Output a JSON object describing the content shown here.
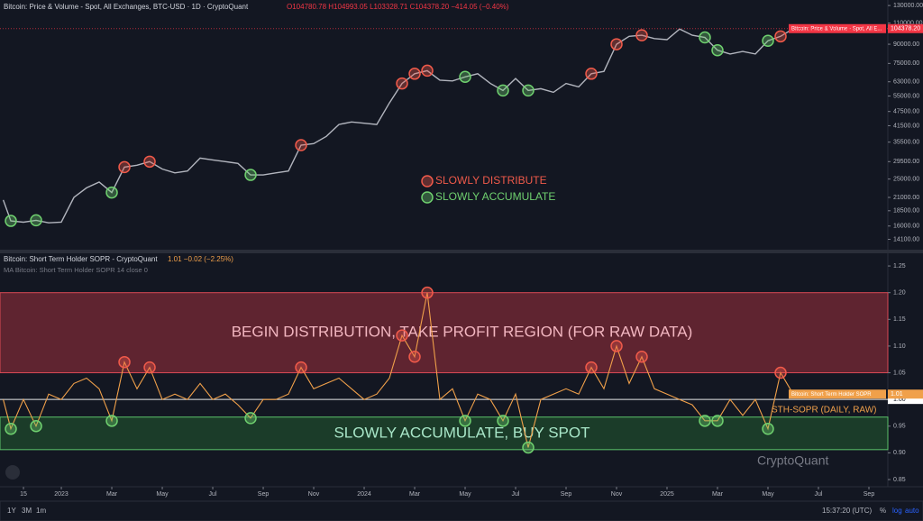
{
  "chart_data": [
    {
      "type": "line",
      "title": "Bitcoin: Price & Volume - Spot, All Exchanges, BTC-USD · 1D · CryptoQuant",
      "subtitle": "O104780.78 H104993.05 L103328.71 C104378.20 −414.05 (−0.40%)",
      "log_scale": true,
      "xlim": [
        -2.43,
        32.75
      ],
      "ylim": [
        13000,
        137000
      ],
      "yticks": [
        {
          "value": 130000,
          "label": "130000.00"
        },
        {
          "value": 110000,
          "label": "110000.00"
        },
        {
          "value": 90000,
          "label": "90000.00"
        },
        {
          "value": 75000,
          "label": "75000.00"
        },
        {
          "value": 63000,
          "label": "63000.00"
        },
        {
          "value": 55000,
          "label": "55000.00"
        },
        {
          "value": 47500,
          "label": "47500.00"
        },
        {
          "value": 41500,
          "label": "41500.00"
        },
        {
          "value": 35500,
          "label": "35500.00"
        },
        {
          "value": 29500,
          "label": "29500.00"
        },
        {
          "value": 25000,
          "label": "25000.00"
        },
        {
          "value": 21000,
          "label": "21000.00"
        },
        {
          "value": 18500,
          "label": "18500.00"
        },
        {
          "value": 16000,
          "label": "16000.00"
        },
        {
          "value": 14100,
          "label": "14100.00"
        }
      ],
      "x": [
        -2.3,
        -2,
        -1.5,
        -1,
        -0.5,
        0,
        0.5,
        1,
        1.5,
        2,
        2.5,
        3,
        3.5,
        4,
        4.5,
        5,
        5.5,
        6,
        6.5,
        7,
        7.5,
        8,
        8.5,
        9,
        9.5,
        10,
        10.5,
        11,
        11.5,
        12,
        12.5,
        13,
        13.5,
        14,
        14.5,
        15,
        15.5,
        16,
        16.5,
        17,
        17.5,
        18,
        18.5,
        19,
        19.5,
        20,
        20.5,
        21,
        21.5,
        22,
        22.5,
        23,
        23.5,
        24,
        24.5,
        25,
        25.5,
        26,
        26.5,
        27,
        27.5,
        28,
        28.5,
        29
      ],
      "series": [
        {
          "name": "Bitcoin: Price & Volume - Spot, All E...",
          "color": "#b2b5be",
          "values": [
            20500,
            16800,
            16600,
            16900,
            16500,
            16600,
            21000,
            23000,
            24300,
            22000,
            28000,
            28500,
            29500,
            27500,
            26500,
            27000,
            30500,
            30000,
            29500,
            29000,
            26000,
            26000,
            26500,
            27000,
            34500,
            35000,
            37500,
            42000,
            43000,
            42500,
            42000,
            51500,
            62000,
            68000,
            70000,
            64000,
            63500,
            66000,
            68000,
            62000,
            58000,
            65000,
            58000,
            59000,
            57000,
            62000,
            60000,
            68000,
            69500,
            90000,
            97000,
            98000,
            95000,
            94000,
            104000,
            98000,
            96000,
            85000,
            82000,
            84000,
            82000,
            93000,
            97000,
            104378.2
          ],
          "last_label": "104378.20",
          "tag_color": "#f23645"
        }
      ],
      "legend": [
        {
          "label": "SLOWLY DISTRIBUTE",
          "color": "#f05a4a"
        },
        {
          "label": "SLOWLY ACCUMULATE",
          "color": "#6fd06f"
        }
      ]
    },
    {
      "type": "line",
      "title": "Bitcoin: Short Term Holder SOPR - CryptoQuant",
      "subtitle": "1.01 −0.02 (−2.25%)",
      "indicator": "MA Bitcoin: Short Term Holder SOPR 14 close 0",
      "xlim": [
        -2.43,
        32.75
      ],
      "xticks": [
        {
          "value": -1.5,
          "label": "15"
        },
        {
          "value": 0,
          "label": "2023"
        },
        {
          "value": 2,
          "label": "Mar"
        },
        {
          "value": 4,
          "label": "May"
        },
        {
          "value": 6,
          "label": "Jul"
        },
        {
          "value": 8,
          "label": "Sep"
        },
        {
          "value": 10,
          "label": "Nov"
        },
        {
          "value": 12,
          "label": "2024"
        },
        {
          "value": 14,
          "label": "Mar"
        },
        {
          "value": 16,
          "label": "May"
        },
        {
          "value": 18,
          "label": "Jul"
        },
        {
          "value": 20,
          "label": "Sep"
        },
        {
          "value": 22,
          "label": "Nov"
        },
        {
          "value": 24,
          "label": "2025"
        },
        {
          "value": 26,
          "label": "Mar"
        },
        {
          "value": 28,
          "label": "May"
        },
        {
          "value": 30,
          "label": "Jul"
        },
        {
          "value": 32,
          "label": "Sep"
        }
      ],
      "ylim": [
        0.8365,
        1.267
      ],
      "yticks": [
        1.25,
        {
          "value": 1.2,
          "label": "1.20"
        },
        1.15,
        {
          "value": 1.1,
          "label": "1.10"
        },
        1.05,
        {
          "value": 1,
          "label": "1.00"
        },
        0.95,
        {
          "value": 0.9,
          "label": "0.90"
        },
        0.85
      ],
      "x": [
        -2.3,
        -2,
        -1.5,
        -1,
        -0.5,
        0,
        0.5,
        1,
        1.5,
        2,
        2.5,
        3,
        3.5,
        4,
        4.5,
        5,
        5.5,
        6,
        6.5,
        7,
        7.5,
        8,
        8.5,
        9,
        9.5,
        10,
        10.5,
        11,
        11.5,
        12,
        12.5,
        13,
        13.5,
        14,
        14.5,
        15,
        15.5,
        16,
        16.5,
        17,
        17.5,
        18,
        18.5,
        19,
        19.5,
        20,
        20.5,
        21,
        21.5,
        22,
        22.5,
        23,
        23.5,
        24,
        24.5,
        25,
        25.5,
        26,
        26.5,
        27,
        27.5,
        28,
        28.5,
        29
      ],
      "series": [
        {
          "name": "Bitcoin: Short Term Holder SOPR",
          "color": "#f0a04a",
          "values": [
            1.0,
            0.945,
            1.0,
            0.95,
            1.01,
            1.0,
            1.03,
            1.04,
            1.02,
            0.96,
            1.07,
            1.02,
            1.06,
            1.0,
            1.01,
            1.0,
            1.03,
            1.0,
            1.01,
            0.99,
            0.965,
            1.0,
            1.0,
            1.01,
            1.06,
            1.02,
            1.03,
            1.04,
            1.02,
            1.0,
            1.01,
            1.04,
            1.12,
            1.08,
            1.2,
            1.0,
            1.02,
            0.96,
            1.01,
            1.0,
            0.96,
            1.01,
            0.91,
            1.0,
            1.01,
            1.02,
            1.01,
            1.06,
            1.02,
            1.1,
            1.03,
            1.08,
            1.02,
            1.01,
            1.0,
            0.99,
            0.96,
            0.96,
            1.0,
            0.97,
            1.0,
            0.945,
            1.05,
            1.01
          ],
          "last_label": "1.01",
          "tag_color": "#f0a04a"
        }
      ],
      "bands": [
        {
          "from": 1.05,
          "to": 1.2,
          "color": "#7a2a35",
          "edge": "#d94a55",
          "label": "BEGIN DISTRIBUTION, TAKE PROFIT REGION (FOR RAW DATA)",
          "text_color": "#f2b6c0"
        },
        {
          "from": 0.906,
          "to": 0.967,
          "color": "#1f4a2c",
          "edge": "#5cc26a",
          "label": "SLOWLY ACCUMULATE, BUY SPOT",
          "text_color": "#a8e6c8"
        }
      ],
      "reference_line": {
        "value": 1,
        "label": "1.00",
        "color": "#e8e8e8"
      },
      "annotation": "STH-SOPR (DAILY, RAW)",
      "distribute_threshold": 1.05,
      "accumulate_threshold": 0.965,
      "watermark": "CryptoQuant"
    }
  ],
  "toolbar": {
    "ranges": [
      "1Y",
      "3M",
      "1m"
    ],
    "clock": "15:37:20 (UTC)",
    "options": [
      "%",
      "log",
      "auto"
    ]
  }
}
